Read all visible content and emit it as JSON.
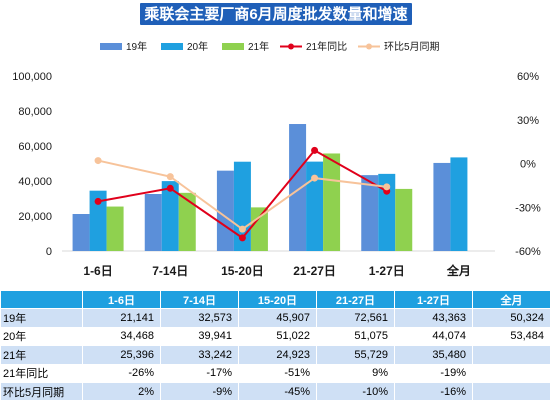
{
  "chart_data": {
    "type": "bar",
    "title": "乘联会主要厂商6月周度批发数量和增速",
    "categories": [
      "1-6日",
      "7-14日",
      "15-20日",
      "21-27日",
      "1-27日",
      "全月"
    ],
    "series": [
      {
        "name": "19年",
        "type": "bar",
        "axis": "left",
        "color": "#5b8fd9",
        "values": [
          21141,
          32573,
          45907,
          72561,
          43363,
          50324
        ]
      },
      {
        "name": "20年",
        "type": "bar",
        "axis": "left",
        "color": "#1fa0e0",
        "values": [
          34468,
          39941,
          51022,
          51075,
          44074,
          53484
        ]
      },
      {
        "name": "21年",
        "type": "bar",
        "axis": "left",
        "color": "#8fd14f",
        "values": [
          25396,
          33242,
          24923,
          55729,
          35480,
          null
        ]
      },
      {
        "name": "21年同比",
        "type": "line",
        "axis": "right",
        "color": "#e0001b",
        "values": [
          -26,
          -17,
          -51,
          9,
          -19,
          null
        ]
      },
      {
        "name": "环比5月同期",
        "type": "line",
        "axis": "right",
        "color": "#f7c39a",
        "values": [
          2,
          -9,
          -45,
          -10,
          -16,
          null
        ]
      }
    ],
    "y_left": {
      "min": 0,
      "max": 100000,
      "ticks": [
        "0",
        "20,000",
        "40,000",
        "60,000",
        "80,000",
        "100,000"
      ]
    },
    "y_right": {
      "min": -60,
      "max": 60,
      "ticks": [
        "-60%",
        "-30%",
        "0%",
        "30%",
        "60%"
      ]
    },
    "grid": false,
    "legend_position": "top"
  },
  "table": {
    "header": [
      "",
      "1-6日",
      "7-14日",
      "15-20日",
      "21-27日",
      "1-27日",
      "全月"
    ],
    "rows": [
      {
        "label": "19年",
        "cells": [
          "21,141",
          "32,573",
          "45,907",
          "72,561",
          "43,363",
          "50,324"
        ]
      },
      {
        "label": "20年",
        "cells": [
          "34,468",
          "39,941",
          "51,022",
          "51,075",
          "44,074",
          "53,484"
        ]
      },
      {
        "label": "21年",
        "cells": [
          "25,396",
          "33,242",
          "24,923",
          "55,729",
          "35,480",
          ""
        ]
      },
      {
        "label": "21年同比",
        "cells": [
          "-26%",
          "-17%",
          "-51%",
          "9%",
          "-19%",
          ""
        ]
      },
      {
        "label": "环比5月同期",
        "cells": [
          "2%",
          "-9%",
          "-45%",
          "-10%",
          "-16%",
          ""
        ]
      }
    ]
  }
}
